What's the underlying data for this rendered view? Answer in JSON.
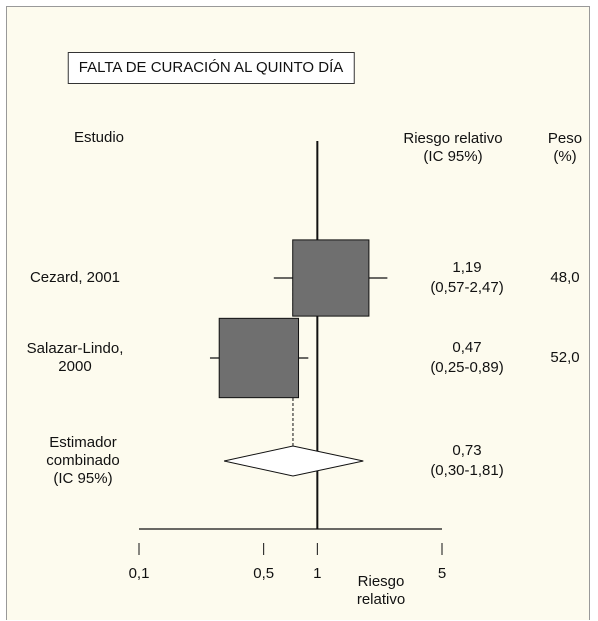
{
  "chart_data": {
    "type": "forest",
    "title": "FALTA DE CURACIÓN AL QUINTO DÍA",
    "headers": {
      "study": "Estudio",
      "rr": "Riesgo relativo\n(IC 95%)",
      "weight": "Peso\n(%)"
    },
    "categories": [
      "Cezard, 2001",
      "Salazar-Lindo,\n2000"
    ],
    "values": [
      1.19,
      0.47
    ],
    "lower": [
      0.57,
      0.25
    ],
    "upper": [
      2.47,
      0.89
    ],
    "value_labels": [
      "1,19",
      "0,47"
    ],
    "ci_labels": [
      "(0,57-2,47)",
      "(0,25-0,89)"
    ],
    "weights": [
      48.0,
      52.0
    ],
    "weight_labels": [
      "48,0",
      "52,0"
    ],
    "pooled": {
      "label": "Estimador\ncombinado\n(IC 95%)",
      "value": 0.73,
      "lower": 0.3,
      "upper": 1.81,
      "value_label": "0,73",
      "ci_label": "(0,30-1,81)"
    },
    "xlim": [
      0.1,
      5
    ],
    "xticks": [
      {
        "value": 0.1,
        "label": "0,1"
      },
      {
        "value": 0.5,
        "label": "0,5"
      },
      1,
      5
    ],
    "log_x": true,
    "xlabel": "Riesgo\nrelativo",
    "color": "#6f6f6f"
  }
}
